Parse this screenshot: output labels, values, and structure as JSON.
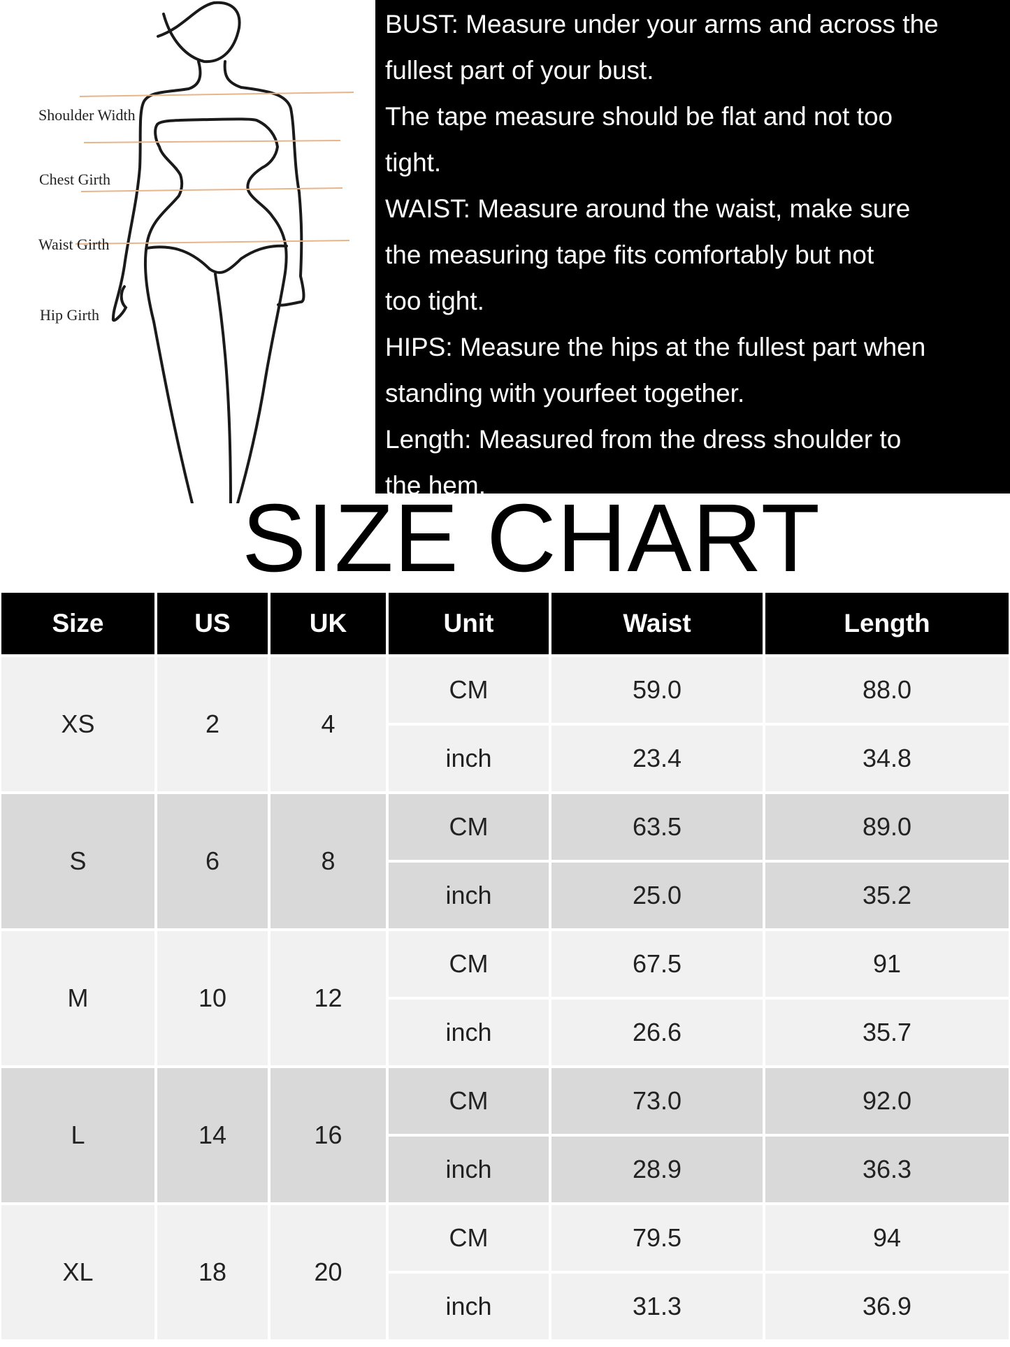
{
  "figure": {
    "labels": [
      "Shoulder Width",
      "Chest Girth",
      "Waist Girth",
      "Hip Girth"
    ],
    "line_color": "#e8b48a"
  },
  "instructions": [
    "BUST: Measure under your arms and across the",
    "fullest part of your bust.",
    "The tape measure should be flat and not too",
    "tight.",
    "WAIST: Measure around the waist, make sure",
    "the measuring tape fits comfortably but not",
    "too tight.",
    "HIPS: Measure the hips at the fullest part when",
    "standing with yourfeet together.",
    "Length: Measured from the dress shoulder to",
    "the hem."
  ],
  "title": "SIZE CHART",
  "table": {
    "headers": [
      "Size",
      "US",
      "UK",
      "Unit",
      "Waist",
      "Length"
    ],
    "rows": [
      {
        "size": "XS",
        "us": "2",
        "uk": "4",
        "cm": {
          "unit": "CM",
          "waist": "59.0",
          "length": "88.0"
        },
        "inch": {
          "unit": "inch",
          "waist": "23.4",
          "length": "34.8"
        }
      },
      {
        "size": "S",
        "us": "6",
        "uk": "8",
        "cm": {
          "unit": "CM",
          "waist": "63.5",
          "length": "89.0"
        },
        "inch": {
          "unit": "inch",
          "waist": "25.0",
          "length": "35.2"
        }
      },
      {
        "size": "M",
        "us": "10",
        "uk": "12",
        "cm": {
          "unit": "CM",
          "waist": "67.5",
          "length": "91"
        },
        "inch": {
          "unit": "inch",
          "waist": "26.6",
          "length": "35.7"
        }
      },
      {
        "size": "L",
        "us": "14",
        "uk": "16",
        "cm": {
          "unit": "CM",
          "waist": "73.0",
          "length": "92.0"
        },
        "inch": {
          "unit": "inch",
          "waist": "28.9",
          "length": "36.3"
        }
      },
      {
        "size": "XL",
        "us": "18",
        "uk": "20",
        "cm": {
          "unit": "CM",
          "waist": "79.5",
          "length": "94"
        },
        "inch": {
          "unit": "inch",
          "waist": "31.3",
          "length": "36.9"
        }
      }
    ],
    "colors": {
      "header": "#000000",
      "row_light": "#f1f1f1",
      "row_dark": "#d9d9d9"
    }
  }
}
